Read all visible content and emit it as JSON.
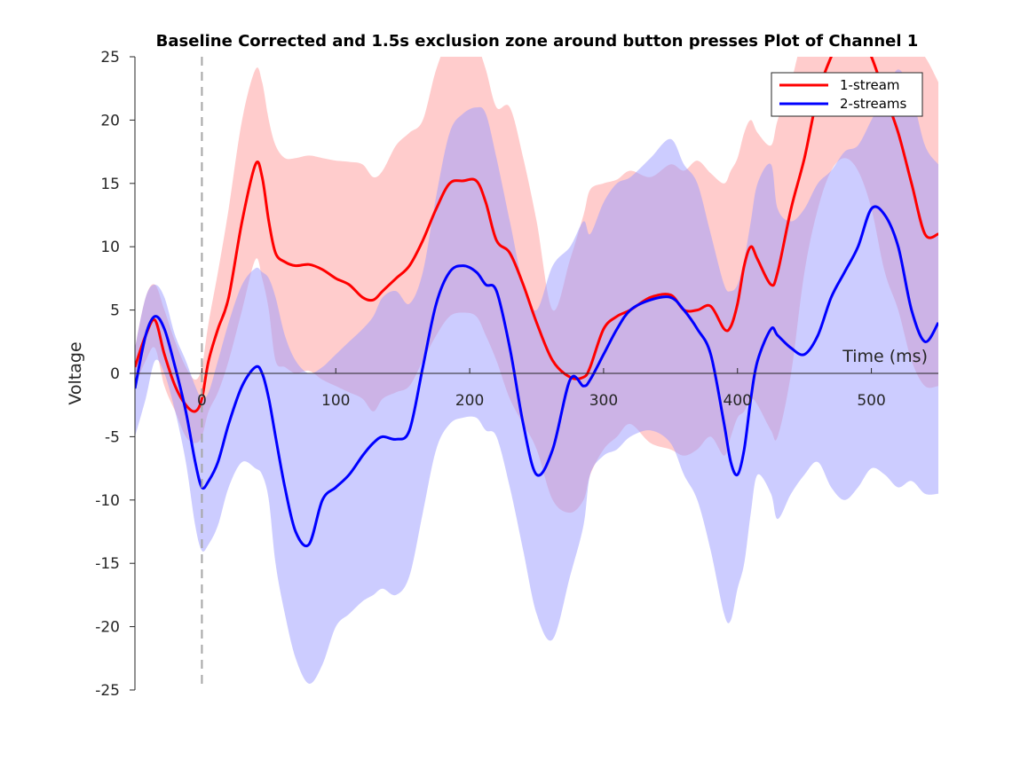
{
  "chart_data": {
    "type": "line",
    "title": "Baseline Corrected and 1.5s exclusion zone around button presses Plot of Channel 1",
    "xlabel": "Time (ms)",
    "ylabel": "Voltage",
    "xlim": [
      -50,
      550
    ],
    "ylim": [
      -25,
      25
    ],
    "xticks": [
      0,
      100,
      200,
      300,
      400,
      500
    ],
    "xtick_labels": [
      "0",
      "100",
      "200",
      "300",
      "400",
      "500"
    ],
    "yticks": [
      25,
      20,
      15,
      10,
      5,
      0,
      -5,
      -10,
      -15,
      -20,
      -25
    ],
    "ytick_labels": [
      "25",
      "20",
      "15",
      "10",
      "5",
      "0",
      "-5",
      "-10",
      "-15",
      "-20",
      "-25"
    ],
    "event_marker_x": 0,
    "legend_location": "top-right",
    "colors": {
      "stream1": "#ff0000",
      "stream2": "#0000ff",
      "marker": "#a6a6a6",
      "axis": "#262626"
    },
    "series": [
      {
        "name": "1-stream",
        "color": "#ff0000",
        "band_color": "#ff9a9a",
        "x": [
          -50,
          -42,
          -35,
          -28,
          -20,
          -12,
          -5,
          0,
          5,
          12,
          20,
          30,
          40,
          45,
          50,
          55,
          62,
          70,
          80,
          90,
          100,
          110,
          120,
          128,
          135,
          145,
          155,
          165,
          175,
          185,
          195,
          205,
          212,
          220,
          230,
          240,
          250,
          262,
          275,
          285,
          290,
          300,
          310,
          320,
          335,
          350,
          360,
          370,
          380,
          390,
          395,
          400,
          405,
          410,
          415,
          425,
          430,
          440,
          450,
          460,
          470,
          480,
          490,
          500,
          510,
          520,
          530,
          540,
          550
        ],
        "mean": [
          0.5,
          3.0,
          4.2,
          1.5,
          -1.0,
          -2.5,
          -3.0,
          -2.0,
          1.0,
          3.5,
          6.0,
          12.0,
          16.5,
          15.5,
          12.0,
          9.5,
          8.8,
          8.5,
          8.6,
          8.2,
          7.5,
          7.0,
          6.0,
          5.8,
          6.5,
          7.5,
          8.5,
          10.5,
          13.0,
          15.0,
          15.2,
          15.2,
          13.5,
          10.5,
          9.5,
          7.0,
          4.0,
          1.0,
          -0.3,
          -0.3,
          0.5,
          3.5,
          4.5,
          5.0,
          6.0,
          6.2,
          5.0,
          5.0,
          5.3,
          3.5,
          3.7,
          5.5,
          8.5,
          10.0,
          9.0,
          7.0,
          8.0,
          13.0,
          17.0,
          22.0,
          25.0,
          27.0,
          27.0,
          25.0,
          22.0,
          19.0,
          15.0,
          11.0,
          11.0
        ],
        "upper": [
          2.0,
          6.0,
          7.0,
          5.0,
          2.5,
          0.5,
          -0.5,
          0.5,
          4.0,
          8.0,
          13.0,
          20.0,
          24.0,
          23.0,
          20.0,
          18.0,
          17.0,
          17.0,
          17.2,
          17.0,
          16.8,
          16.7,
          16.5,
          15.5,
          16.0,
          18.0,
          19.0,
          20.0,
          24.0,
          26.5,
          27.0,
          26.0,
          24.0,
          21.0,
          21.0,
          17.0,
          12.0,
          5.0,
          9.0,
          12.5,
          14.5,
          15.0,
          15.3,
          16.0,
          15.5,
          16.5,
          16.0,
          16.8,
          15.8,
          15.0,
          16.0,
          17.0,
          19.0,
          20.0,
          19.0,
          18.0,
          20.0,
          23.0,
          27.0,
          28.0,
          29.0,
          29.0,
          28.0,
          28.0,
          28.0,
          27.0,
          26.0,
          25.0,
          23.0
        ],
        "lower": [
          -1.0,
          1.0,
          2.0,
          -1.0,
          -3.0,
          -5.0,
          -5.5,
          -5.0,
          -3.0,
          -1.5,
          1.0,
          5.0,
          9.0,
          7.5,
          5.0,
          1.0,
          0.5,
          0.0,
          0.2,
          -0.5,
          -1.0,
          -1.5,
          -2.0,
          -3.0,
          -2.0,
          -1.5,
          -1.0,
          1.0,
          3.0,
          4.5,
          4.8,
          4.5,
          3.0,
          1.0,
          -2.0,
          -4.0,
          -6.0,
          -10.0,
          -11.0,
          -10.0,
          -8.0,
          -6.0,
          -5.0,
          -4.0,
          -5.5,
          -6.0,
          -6.5,
          -6.0,
          -5.0,
          -6.5,
          -5.0,
          -3.5,
          -3.0,
          -2.0,
          -2.5,
          -4.5,
          -5.0,
          0.0,
          8.0,
          13.0,
          16.0,
          17.0,
          16.0,
          13.0,
          8.0,
          5.0,
          1.0,
          -1.0,
          -1.0
        ]
      },
      {
        "name": "2-streams",
        "color": "#0000ff",
        "band_color": "#9a9aff",
        "x": [
          -50,
          -42,
          -35,
          -28,
          -20,
          -12,
          -5,
          0,
          5,
          12,
          20,
          30,
          40,
          45,
          50,
          55,
          62,
          70,
          80,
          90,
          100,
          110,
          120,
          128,
          135,
          145,
          155,
          165,
          175,
          185,
          195,
          205,
          212,
          220,
          230,
          240,
          250,
          262,
          275,
          285,
          290,
          300,
          310,
          320,
          335,
          350,
          360,
          370,
          380,
          390,
          395,
          400,
          405,
          410,
          415,
          425,
          430,
          440,
          450,
          460,
          470,
          480,
          490,
          500,
          510,
          520,
          530,
          540,
          550
        ],
        "mean": [
          -1.2,
          3.0,
          4.5,
          3.5,
          0.5,
          -3.0,
          -7.0,
          -9.0,
          -8.5,
          -7.0,
          -4.0,
          -1.0,
          0.5,
          0.0,
          -2.0,
          -5.0,
          -9.0,
          -12.5,
          -13.5,
          -10.0,
          -9.0,
          -8.0,
          -6.5,
          -5.5,
          -5.0,
          -5.2,
          -4.5,
          0.5,
          5.5,
          8.0,
          8.5,
          8.0,
          7.0,
          6.5,
          2.0,
          -4.0,
          -8.0,
          -6.0,
          -0.5,
          -1.0,
          -0.5,
          1.5,
          3.5,
          5.0,
          5.8,
          6.0,
          5.0,
          3.5,
          1.5,
          -4.0,
          -7.0,
          -8.0,
          -6.0,
          -2.0,
          1.0,
          3.5,
          3.0,
          2.0,
          1.5,
          3.0,
          6.0,
          8.0,
          10.0,
          13.0,
          12.5,
          10.0,
          5.0,
          2.5,
          4.0
        ],
        "upper": [
          2.0,
          6.0,
          7.0,
          6.0,
          3.0,
          1.0,
          -1.0,
          -2.0,
          -1.5,
          1.0,
          4.0,
          7.0,
          8.3,
          8.0,
          7.5,
          6.0,
          3.0,
          1.0,
          0.0,
          0.5,
          1.5,
          2.5,
          3.5,
          4.5,
          6.0,
          6.5,
          5.5,
          8.0,
          14.0,
          19.0,
          20.5,
          21.0,
          20.5,
          17.0,
          12.0,
          7.0,
          5.0,
          8.5,
          10.0,
          12.0,
          11.0,
          13.5,
          15.0,
          15.5,
          17.0,
          18.5,
          16.5,
          15.0,
          11.0,
          7.0,
          6.5,
          7.0,
          9.0,
          12.0,
          15.0,
          16.5,
          13.0,
          12.0,
          13.0,
          15.0,
          16.0,
          17.5,
          18.0,
          20.0,
          22.0,
          24.0,
          22.0,
          18.0,
          16.5
        ],
        "lower": [
          -5.0,
          -2.0,
          1.0,
          0.0,
          -3.0,
          -7.0,
          -12.0,
          -14.0,
          -13.5,
          -12.0,
          -9.0,
          -7.0,
          -7.5,
          -8.0,
          -10.0,
          -15.0,
          -19.0,
          -22.5,
          -24.5,
          -23.0,
          -20.0,
          -19.0,
          -18.0,
          -17.5,
          -17.0,
          -17.5,
          -16.0,
          -11.0,
          -6.0,
          -4.0,
          -3.5,
          -3.5,
          -4.5,
          -5.0,
          -9.0,
          -14.0,
          -19.0,
          -21.0,
          -16.0,
          -12.0,
          -8.0,
          -6.5,
          -6.0,
          -5.0,
          -4.5,
          -5.5,
          -8.0,
          -10.0,
          -14.0,
          -19.0,
          -19.5,
          -17.0,
          -15.0,
          -11.0,
          -8.0,
          -9.5,
          -11.5,
          -9.5,
          -8.0,
          -7.0,
          -9.0,
          -10.0,
          -9.0,
          -7.5,
          -8.0,
          -9.0,
          -8.5,
          -9.5,
          -9.5
        ]
      }
    ]
  }
}
